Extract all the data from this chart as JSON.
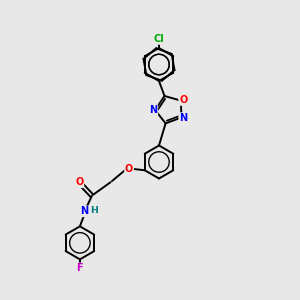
{
  "bg_color": "#e8e8e8",
  "bond_color": "#000000",
  "atom_colors": {
    "Cl": "#00aa00",
    "O": "#ff0000",
    "N": "#0000ff",
    "F": "#cc00cc",
    "C": "#000000",
    "H": "#008080"
  },
  "figsize": [
    3.0,
    3.0
  ],
  "dpi": 100,
  "lw": 1.4,
  "r_benz": 0.55,
  "r_oxad": 0.48,
  "fontsize": 7.5
}
